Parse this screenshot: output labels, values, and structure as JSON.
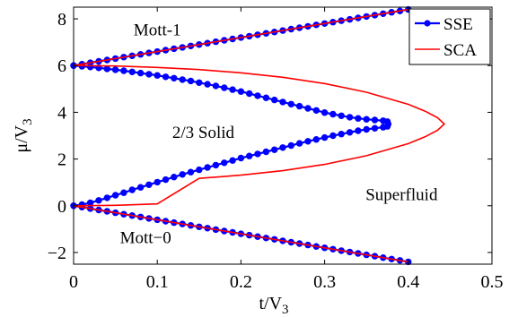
{
  "chart_data": {
    "type": "line",
    "xlabel": "t/V",
    "xlabel_sub": "3",
    "ylabel": "μ/V",
    "ylabel_sub": "3",
    "xlim": [
      0,
      0.5
    ],
    "ylim": [
      -2.5,
      8.5
    ],
    "xticks": [
      0,
      0.1,
      0.2,
      0.3,
      0.4,
      0.5
    ],
    "xtick_labels": [
      "0",
      "0.1",
      "0.2",
      "0.3",
      "0.4",
      "0.5"
    ],
    "yticks": [
      -2,
      0,
      2,
      4,
      6,
      8
    ],
    "ytick_labels": [
      "−2",
      "0",
      "2",
      "4",
      "6",
      "8"
    ],
    "legend_position": "top-right",
    "legend": [
      {
        "name": "SSE",
        "color": "#0000ff",
        "marker": "circle"
      },
      {
        "name": "SCA",
        "color": "#ff0000",
        "marker": "none"
      }
    ],
    "annotations": [
      {
        "text": "Mott-1",
        "x": 0.1,
        "y": 7.3
      },
      {
        "text": "2/3 Solid",
        "x": 0.155,
        "y": 2.9
      },
      {
        "text": "Superfluid",
        "x": 0.392,
        "y": 0.25
      },
      {
        "text": "Mott−0",
        "x": 0.086,
        "y": -1.6
      }
    ],
    "series": [
      {
        "name": "SSE",
        "color": "#0000ff",
        "marker": "circle",
        "segments": [
          [
            [
              0.0,
              6.0
            ],
            [
              0.01,
              6.06
            ],
            [
              0.02,
              6.12
            ],
            [
              0.03,
              6.18
            ],
            [
              0.04,
              6.24
            ],
            [
              0.05,
              6.3
            ],
            [
              0.06,
              6.36
            ],
            [
              0.07,
              6.42
            ],
            [
              0.08,
              6.48
            ],
            [
              0.09,
              6.54
            ],
            [
              0.1,
              6.6
            ],
            [
              0.11,
              6.66
            ],
            [
              0.12,
              6.72
            ],
            [
              0.13,
              6.78
            ],
            [
              0.14,
              6.84
            ],
            [
              0.15,
              6.9
            ],
            [
              0.16,
              6.96
            ],
            [
              0.17,
              7.02
            ],
            [
              0.18,
              7.08
            ],
            [
              0.19,
              7.14
            ],
            [
              0.2,
              7.2
            ],
            [
              0.21,
              7.26
            ],
            [
              0.22,
              7.32
            ],
            [
              0.23,
              7.38
            ],
            [
              0.24,
              7.44
            ],
            [
              0.25,
              7.5
            ],
            [
              0.26,
              7.56
            ],
            [
              0.27,
              7.62
            ],
            [
              0.28,
              7.68
            ],
            [
              0.29,
              7.74
            ],
            [
              0.3,
              7.8
            ],
            [
              0.31,
              7.86
            ],
            [
              0.32,
              7.92
            ],
            [
              0.33,
              7.98
            ],
            [
              0.34,
              8.04
            ],
            [
              0.35,
              8.1
            ],
            [
              0.36,
              8.16
            ],
            [
              0.37,
              8.22
            ],
            [
              0.38,
              8.28
            ],
            [
              0.39,
              8.34
            ],
            [
              0.4,
              8.4
            ]
          ],
          [
            [
              0.0,
              6.0
            ],
            [
              0.01,
              5.97
            ],
            [
              0.02,
              5.94
            ],
            [
              0.03,
              5.9
            ],
            [
              0.04,
              5.86
            ],
            [
              0.05,
              5.82
            ],
            [
              0.06,
              5.78
            ],
            [
              0.07,
              5.73
            ],
            [
              0.08,
              5.68
            ],
            [
              0.09,
              5.63
            ],
            [
              0.1,
              5.58
            ],
            [
              0.11,
              5.52
            ],
            [
              0.12,
              5.46
            ],
            [
              0.13,
              5.4
            ],
            [
              0.14,
              5.34
            ],
            [
              0.15,
              5.27
            ],
            [
              0.16,
              5.2
            ],
            [
              0.17,
              5.13
            ],
            [
              0.18,
              5.05
            ],
            [
              0.19,
              4.97
            ],
            [
              0.2,
              4.89
            ],
            [
              0.21,
              4.8
            ],
            [
              0.22,
              4.71
            ],
            [
              0.23,
              4.62
            ],
            [
              0.24,
              4.53
            ],
            [
              0.25,
              4.44
            ],
            [
              0.26,
              4.35
            ],
            [
              0.27,
              4.26
            ],
            [
              0.28,
              4.17
            ],
            [
              0.29,
              4.08
            ],
            [
              0.3,
              3.99
            ],
            [
              0.31,
              3.92
            ],
            [
              0.32,
              3.85
            ],
            [
              0.33,
              3.79
            ],
            [
              0.34,
              3.74
            ],
            [
              0.35,
              3.7
            ],
            [
              0.36,
              3.67
            ],
            [
              0.37,
              3.64
            ],
            [
              0.375,
              3.6
            ],
            [
              0.376,
              3.5
            ],
            [
              0.375,
              3.4
            ],
            [
              0.37,
              3.36
            ],
            [
              0.36,
              3.32
            ],
            [
              0.35,
              3.27
            ],
            [
              0.34,
              3.21
            ],
            [
              0.33,
              3.14
            ],
            [
              0.32,
              3.07
            ],
            [
              0.31,
              3.0
            ],
            [
              0.3,
              2.92
            ],
            [
              0.29,
              2.84
            ],
            [
              0.28,
              2.76
            ],
            [
              0.27,
              2.67
            ],
            [
              0.26,
              2.58
            ],
            [
              0.25,
              2.49
            ],
            [
              0.24,
              2.4
            ],
            [
              0.23,
              2.31
            ],
            [
              0.22,
              2.22
            ],
            [
              0.21,
              2.13
            ],
            [
              0.2,
              2.04
            ],
            [
              0.19,
              1.94
            ],
            [
              0.18,
              1.84
            ],
            [
              0.17,
              1.74
            ],
            [
              0.16,
              1.64
            ],
            [
              0.15,
              1.54
            ],
            [
              0.14,
              1.44
            ],
            [
              0.13,
              1.34
            ],
            [
              0.12,
              1.23
            ],
            [
              0.11,
              1.12
            ],
            [
              0.1,
              1.01
            ],
            [
              0.09,
              0.9
            ],
            [
              0.08,
              0.79
            ],
            [
              0.07,
              0.68
            ],
            [
              0.06,
              0.56
            ],
            [
              0.05,
              0.45
            ],
            [
              0.04,
              0.34
            ],
            [
              0.03,
              0.23
            ],
            [
              0.02,
              0.13
            ],
            [
              0.01,
              0.05
            ],
            [
              0.0,
              0.0
            ]
          ],
          [
            [
              0.0,
              0.0
            ],
            [
              0.01,
              -0.06
            ],
            [
              0.02,
              -0.12
            ],
            [
              0.03,
              -0.18
            ],
            [
              0.04,
              -0.24
            ],
            [
              0.05,
              -0.3
            ],
            [
              0.06,
              -0.36
            ],
            [
              0.07,
              -0.42
            ],
            [
              0.08,
              -0.48
            ],
            [
              0.09,
              -0.54
            ],
            [
              0.1,
              -0.6
            ],
            [
              0.11,
              -0.66
            ],
            [
              0.12,
              -0.72
            ],
            [
              0.13,
              -0.78
            ],
            [
              0.14,
              -0.84
            ],
            [
              0.15,
              -0.9
            ],
            [
              0.16,
              -0.96
            ],
            [
              0.17,
              -1.02
            ],
            [
              0.18,
              -1.08
            ],
            [
              0.19,
              -1.14
            ],
            [
              0.2,
              -1.2
            ],
            [
              0.21,
              -1.26
            ],
            [
              0.22,
              -1.32
            ],
            [
              0.23,
              -1.38
            ],
            [
              0.24,
              -1.44
            ],
            [
              0.25,
              -1.5
            ],
            [
              0.26,
              -1.56
            ],
            [
              0.27,
              -1.62
            ],
            [
              0.28,
              -1.68
            ],
            [
              0.29,
              -1.74
            ],
            [
              0.3,
              -1.8
            ],
            [
              0.31,
              -1.86
            ],
            [
              0.32,
              -1.92
            ],
            [
              0.33,
              -1.98
            ],
            [
              0.34,
              -2.04
            ],
            [
              0.35,
              -2.1
            ],
            [
              0.36,
              -2.16
            ],
            [
              0.37,
              -2.22
            ],
            [
              0.38,
              -2.28
            ],
            [
              0.39,
              -2.34
            ],
            [
              0.4,
              -2.4
            ]
          ]
        ]
      },
      {
        "name": "SCA",
        "color": "#ff0000",
        "marker": "none",
        "segments": [
          [
            [
              0.0,
              6.0
            ],
            [
              0.4,
              8.4
            ]
          ],
          [
            [
              0.0,
              6.0
            ],
            [
              0.05,
              5.98
            ],
            [
              0.1,
              5.92
            ],
            [
              0.15,
              5.83
            ],
            [
              0.2,
              5.69
            ],
            [
              0.25,
              5.5
            ],
            [
              0.3,
              5.23
            ],
            [
              0.35,
              4.86
            ],
            [
              0.4,
              4.34
            ],
            [
              0.42,
              4.05
            ],
            [
              0.435,
              3.77
            ],
            [
              0.443,
              3.5
            ],
            [
              0.435,
              3.23
            ],
            [
              0.42,
              2.95
            ],
            [
              0.4,
              2.66
            ],
            [
              0.35,
              2.14
            ],
            [
              0.3,
              1.77
            ],
            [
              0.25,
              1.5
            ],
            [
              0.2,
              1.31
            ],
            [
              0.15,
              1.17
            ],
            [
              0.1,
              0.08
            ],
            [
              0.05,
              0.02
            ],
            [
              0.0,
              0.0
            ]
          ],
          [
            [
              0.0,
              0.0
            ],
            [
              0.4,
              -2.4
            ]
          ]
        ]
      }
    ]
  }
}
